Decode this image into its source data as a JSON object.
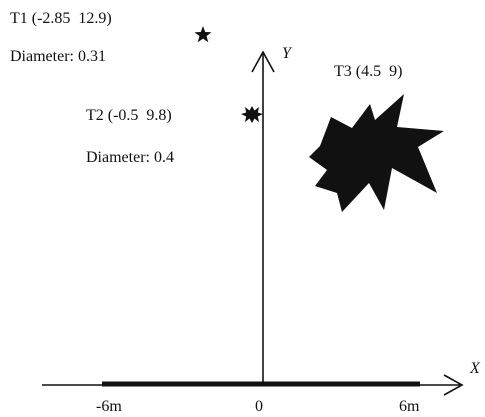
{
  "targets": [
    {
      "label": "T1 (-2.85  12.9)",
      "diameter_label": "Diameter: 0.31"
    },
    {
      "label": "T2 (-0.5  9.8)",
      "diameter_label": "Diameter: 0.4"
    },
    {
      "label": "T3 (4.5  9)"
    }
  ],
  "axes": {
    "x_label": "X",
    "y_label": "Y"
  },
  "ticks": {
    "left": "-6m",
    "center": "0",
    "right": "6m"
  },
  "colors": {
    "ink": "#111111",
    "background": "#ffffff"
  }
}
